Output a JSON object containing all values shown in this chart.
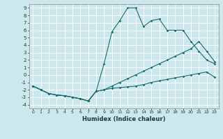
{
  "xlabel": "Humidex (Indice chaleur)",
  "bg_color": "#cce8ec",
  "grid_color": "#ffffff",
  "line_color": "#1a6b6b",
  "xlim": [
    -0.5,
    23.5
  ],
  "ylim": [
    -4.5,
    9.5
  ],
  "xticks": [
    0,
    1,
    2,
    3,
    4,
    5,
    6,
    7,
    8,
    9,
    10,
    11,
    12,
    13,
    14,
    15,
    16,
    17,
    18,
    19,
    20,
    21,
    22,
    23
  ],
  "yticks": [
    -4,
    -3,
    -2,
    -1,
    0,
    1,
    2,
    3,
    4,
    5,
    6,
    7,
    8,
    9
  ],
  "line1_x": [
    0,
    1,
    2,
    3,
    4,
    5,
    6,
    7,
    8,
    9,
    10,
    11,
    12,
    13,
    14,
    15,
    16,
    17,
    18,
    19,
    20,
    21,
    22,
    23
  ],
  "line1_y": [
    -1.5,
    -2.0,
    -2.5,
    -2.7,
    -2.8,
    -3.0,
    -3.2,
    -3.5,
    -2.2,
    1.5,
    5.8,
    7.3,
    9.0,
    9.0,
    6.5,
    7.3,
    7.5,
    6.0,
    6.0,
    6.0,
    4.5,
    3.2,
    2.0,
    1.5
  ],
  "line2_x": [
    0,
    1,
    2,
    3,
    4,
    5,
    6,
    7,
    8,
    9,
    10,
    11,
    12,
    13,
    14,
    15,
    16,
    17,
    18,
    19,
    20,
    21,
    22,
    23
  ],
  "line2_y": [
    -1.5,
    -2.0,
    -2.5,
    -2.7,
    -2.8,
    -3.0,
    -3.2,
    -3.5,
    -2.2,
    -2.0,
    -1.5,
    -1.0,
    -0.5,
    0.0,
    0.5,
    1.0,
    1.5,
    2.0,
    2.5,
    3.0,
    3.5,
    4.5,
    3.2,
    1.8
  ],
  "line3_x": [
    0,
    1,
    2,
    3,
    4,
    5,
    6,
    7,
    8,
    9,
    10,
    11,
    12,
    13,
    14,
    15,
    16,
    17,
    18,
    19,
    20,
    21,
    22,
    23
  ],
  "line3_y": [
    -1.5,
    -2.0,
    -2.5,
    -2.7,
    -2.8,
    -3.0,
    -3.2,
    -3.5,
    -2.2,
    -2.0,
    -1.8,
    -1.7,
    -1.6,
    -1.5,
    -1.3,
    -1.0,
    -0.8,
    -0.6,
    -0.4,
    -0.2,
    0.0,
    0.2,
    0.4,
    -0.3
  ]
}
